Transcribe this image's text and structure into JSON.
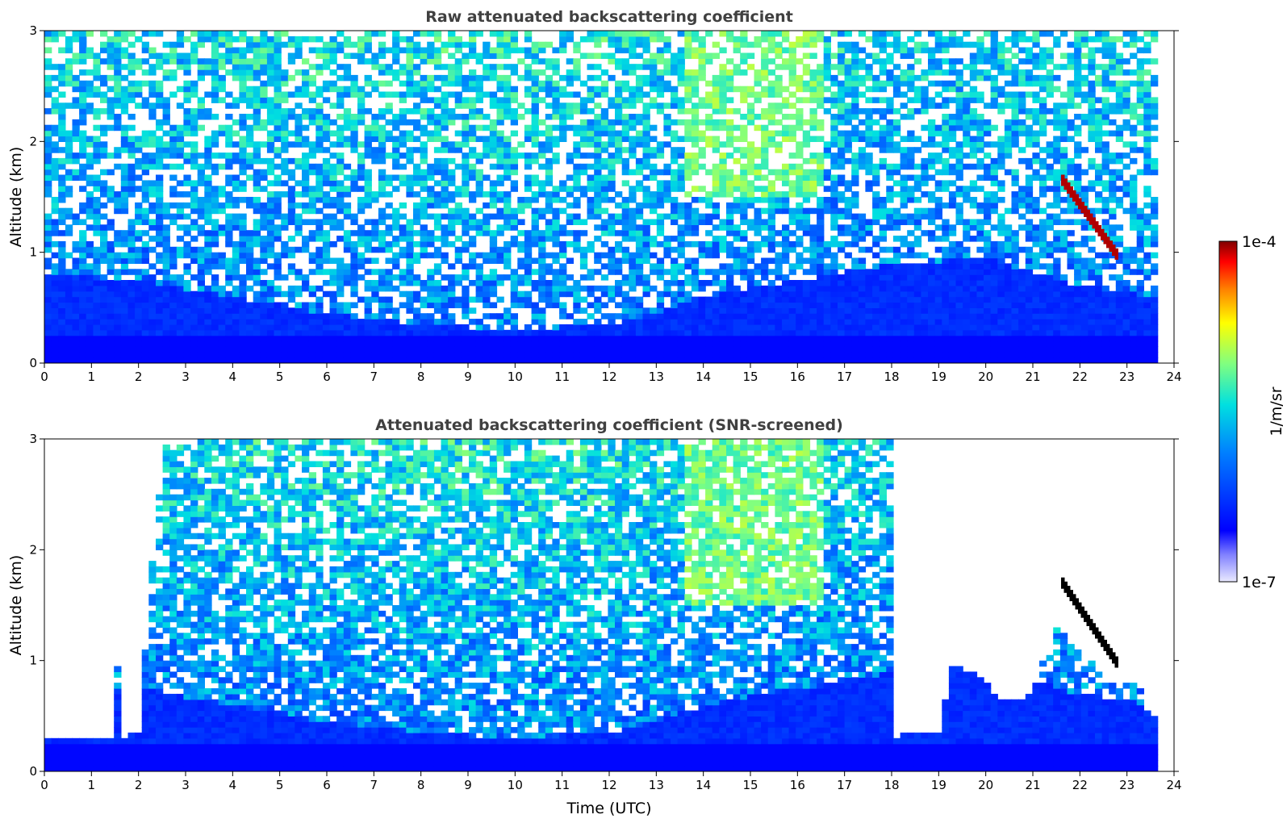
{
  "chart_data": [
    {
      "type": "heatmap",
      "title": "Raw attenuated backscattering coefficient",
      "xlabel": "",
      "ylabel": "Altitude (km)",
      "xlim": [
        0,
        24
      ],
      "ylim": [
        0,
        3
      ],
      "x_ticks": [
        "0",
        "1",
        "2",
        "3",
        "4",
        "5",
        "6",
        "7",
        "8",
        "9",
        "10",
        "11",
        "12",
        "13",
        "14",
        "15",
        "16",
        "17",
        "18",
        "19",
        "20",
        "21",
        "22",
        "23",
        "24"
      ],
      "y_ticks": [
        "0",
        "1",
        "2",
        "3"
      ],
      "data_end_time": 23.65,
      "mixed_layer_top_km": [
        [
          0,
          0.8
        ],
        [
          2,
          0.75
        ],
        [
          4,
          0.6
        ],
        [
          6,
          0.45
        ],
        [
          8,
          0.35
        ],
        [
          10,
          0.3
        ],
        [
          12,
          0.35
        ],
        [
          13,
          0.45
        ],
        [
          14,
          0.6
        ],
        [
          16,
          0.75
        ],
        [
          18,
          0.9
        ],
        [
          20,
          0.95
        ],
        [
          22,
          0.7
        ],
        [
          23.65,
          0.6
        ]
      ],
      "features": [
        {
          "kind": "elevated aerosol (high backscatter)",
          "time_range": [
            13.6,
            16.5
          ],
          "altitude_range_km": [
            1.5,
            3.0
          ],
          "level": "~1e-5"
        },
        {
          "kind": "cloud layer",
          "time_range": [
            21.6,
            22.8
          ],
          "altitude_top_km": [
            1.7,
            1.0
          ],
          "level": "1e-4"
        },
        {
          "kind": "small feature",
          "time": 13.7,
          "altitude_km": 1.45
        }
      ]
    },
    {
      "type": "heatmap",
      "title": "Attenuated backscattering coefficient (SNR-screened)",
      "xlabel": "Time (UTC)",
      "ylabel": "Altitude (km)",
      "xlim": [
        0,
        24
      ],
      "ylim": [
        0,
        3
      ],
      "x_ticks": [
        "0",
        "1",
        "2",
        "3",
        "4",
        "5",
        "6",
        "7",
        "8",
        "9",
        "10",
        "11",
        "12",
        "13",
        "14",
        "15",
        "16",
        "17",
        "18",
        "19",
        "20",
        "21",
        "22",
        "23",
        "24"
      ],
      "y_ticks": [
        "0",
        "1",
        "2",
        "3"
      ],
      "data_end_time": 23.65,
      "screened_top_km": [
        [
          0,
          0.3
        ],
        [
          1.5,
          0.3
        ],
        [
          1.55,
          0.95
        ],
        [
          1.65,
          0.3
        ],
        [
          2.0,
          0.35
        ],
        [
          2.5,
          3.0
        ],
        [
          18.0,
          3.0
        ],
        [
          18.05,
          0.32
        ],
        [
          19.0,
          0.35
        ],
        [
          19.3,
          0.95
        ],
        [
          19.8,
          0.9
        ],
        [
          20.3,
          0.65
        ],
        [
          20.8,
          0.65
        ],
        [
          21.0,
          0.75
        ],
        [
          21.5,
          1.3
        ],
        [
          22.2,
          1.0
        ],
        [
          22.8,
          0.75
        ],
        [
          23.2,
          0.85
        ],
        [
          23.4,
          0.55
        ],
        [
          23.65,
          0.5
        ]
      ],
      "features": [
        {
          "kind": "elevated aerosol (high backscatter)",
          "time_range": [
            13.6,
            16.5
          ],
          "altitude_range_km": [
            1.5,
            3.0
          ],
          "level": "~1e-5"
        },
        {
          "kind": "cloud layer",
          "time_range": [
            21.6,
            22.8
          ],
          "altitude_top_km": [
            1.75,
            1.0
          ],
          "level": ">1e-4"
        }
      ]
    }
  ],
  "colorbar": {
    "label": "1/m/sr",
    "max_label": "1e-4",
    "min_label": "1e-7",
    "min": 1e-07,
    "max": 0.0001,
    "scale": "log",
    "colormap": "jet"
  }
}
